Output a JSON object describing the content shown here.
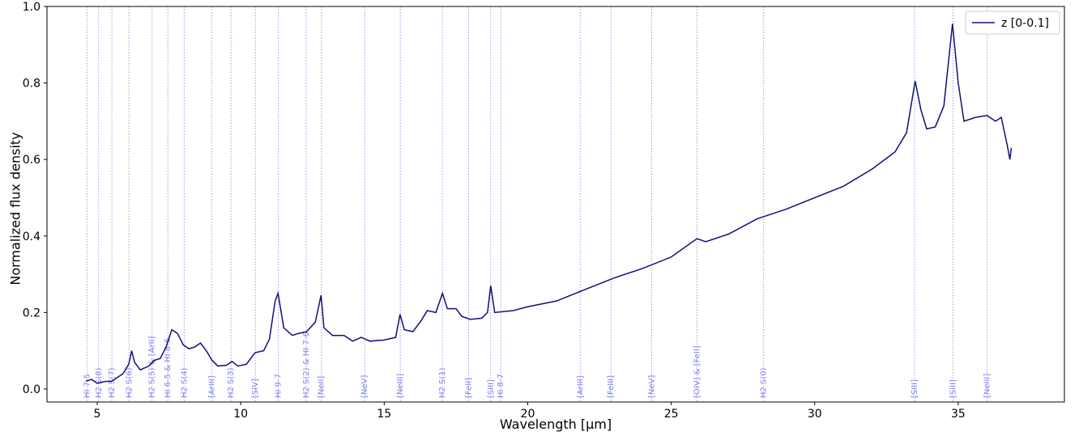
{
  "chart_data": {
    "type": "line",
    "x_label": "Wavelength [μm]",
    "y_label": "Normalized flux density",
    "xlim": [
      3.25,
      38.7
    ],
    "ylim": [
      -0.034,
      1.0
    ],
    "xticks": [
      5,
      10,
      15,
      20,
      25,
      30,
      35
    ],
    "yticks": [
      {
        "value": 0,
        "label": "0.0"
      },
      0.2,
      0.4,
      0.6,
      0.8,
      {
        "value": 1,
        "label": "1.0"
      }
    ],
    "legend_position": "upper right",
    "series": [
      {
        "name": "z [0-0.1]",
        "color": "#10107a",
        "x": [
          4.6,
          4.8,
          5.0,
          5.3,
          5.5,
          5.7,
          5.9,
          6.1,
          6.2,
          6.3,
          6.5,
          6.8,
          7.0,
          7.2,
          7.4,
          7.6,
          7.8,
          8.0,
          8.2,
          8.4,
          8.6,
          8.8,
          9.0,
          9.2,
          9.5,
          9.7,
          9.9,
          10.2,
          10.5,
          10.8,
          11.0,
          11.2,
          11.3,
          11.5,
          11.8,
          12.0,
          12.3,
          12.6,
          12.8,
          12.9,
          13.2,
          13.6,
          13.9,
          14.2,
          14.5,
          15.0,
          15.4,
          15.55,
          15.7,
          16.0,
          16.3,
          16.5,
          16.8,
          17.03,
          17.2,
          17.5,
          17.7,
          18.0,
          18.4,
          18.6,
          18.71,
          18.85,
          19.5,
          20,
          21,
          22,
          23,
          24,
          25,
          25.9,
          26.2,
          27,
          28,
          29,
          30,
          31,
          32,
          32.8,
          33.2,
          33.5,
          33.7,
          33.9,
          34.2,
          34.5,
          34.8,
          35.0,
          35.2,
          35.6,
          36.0,
          36.3,
          36.5,
          36.7,
          36.8,
          36.85
        ],
        "values": [
          0.02,
          0.025,
          0.015,
          0.02,
          0.02,
          0.03,
          0.04,
          0.065,
          0.1,
          0.07,
          0.05,
          0.06,
          0.075,
          0.08,
          0.11,
          0.155,
          0.145,
          0.115,
          0.105,
          0.11,
          0.12,
          0.1,
          0.075,
          0.06,
          0.062,
          0.072,
          0.06,
          0.065,
          0.095,
          0.1,
          0.13,
          0.23,
          0.25,
          0.16,
          0.14,
          0.145,
          0.15,
          0.175,
          0.245,
          0.16,
          0.14,
          0.14,
          0.125,
          0.135,
          0.125,
          0.128,
          0.135,
          0.195,
          0.155,
          0.15,
          0.18,
          0.205,
          0.2,
          0.25,
          0.21,
          0.21,
          0.19,
          0.182,
          0.185,
          0.2,
          0.27,
          0.2,
          0.205,
          0.215,
          0.23,
          0.26,
          0.29,
          0.315,
          0.345,
          0.393,
          0.385,
          0.405,
          0.445,
          0.47,
          0.5,
          0.53,
          0.575,
          0.62,
          0.67,
          0.805,
          0.73,
          0.68,
          0.685,
          0.74,
          0.955,
          0.8,
          0.7,
          0.71,
          0.715,
          0.7,
          0.71,
          0.64,
          0.6,
          0.63
        ]
      }
    ],
    "line_color": "#9a9af0",
    "lines": [
      {
        "wavelength": 4.65,
        "label": "HI 7-5"
      },
      {
        "wavelength": 5.05,
        "label": "H2 S(8)"
      },
      {
        "wavelength": 5.51,
        "label": "H2 S(7)"
      },
      {
        "wavelength": 6.11,
        "label": "H2 S(6)"
      },
      {
        "wavelength": 6.91,
        "label": "H2 S(5) & [ArII]"
      },
      {
        "wavelength": 7.46,
        "label": "HI 6-5 & HI 8-6"
      },
      {
        "wavelength": 8.03,
        "label": "H2 S(4)"
      },
      {
        "wavelength": 8.99,
        "label": "[ArIII]"
      },
      {
        "wavelength": 9.66,
        "label": "H2 S(3)"
      },
      {
        "wavelength": 10.51,
        "label": "[SIV]"
      },
      {
        "wavelength": 11.31,
        "label": "HI 9-7"
      },
      {
        "wavelength": 12.28,
        "label": "H2 S(2) & HI 7-6"
      },
      {
        "wavelength": 12.81,
        "label": "[NeII]"
      },
      {
        "wavelength": 14.32,
        "label": "[NeV]"
      },
      {
        "wavelength": 15.56,
        "label": "[NeIII]"
      },
      {
        "wavelength": 17.03,
        "label": "H2 S(1)"
      },
      {
        "wavelength": 17.94,
        "label": "[FeII]"
      },
      {
        "wavelength": 18.71,
        "label": "[SIII]"
      },
      {
        "wavelength": 19.06,
        "label": "HI 8-7"
      },
      {
        "wavelength": 21.83,
        "label": "[ArIII]"
      },
      {
        "wavelength": 22.9,
        "label": "[FeIII]"
      },
      {
        "wavelength": 24.32,
        "label": "[NeV]"
      },
      {
        "wavelength": 25.9,
        "label": "[OIV] & [FeII]"
      },
      {
        "wavelength": 28.22,
        "label": "H2 S(0)"
      },
      {
        "wavelength": 33.48,
        "label": "[SIII]"
      },
      {
        "wavelength": 34.82,
        "label": "[SiII]"
      },
      {
        "wavelength": 36.01,
        "label": "[NeIII]"
      }
    ]
  }
}
